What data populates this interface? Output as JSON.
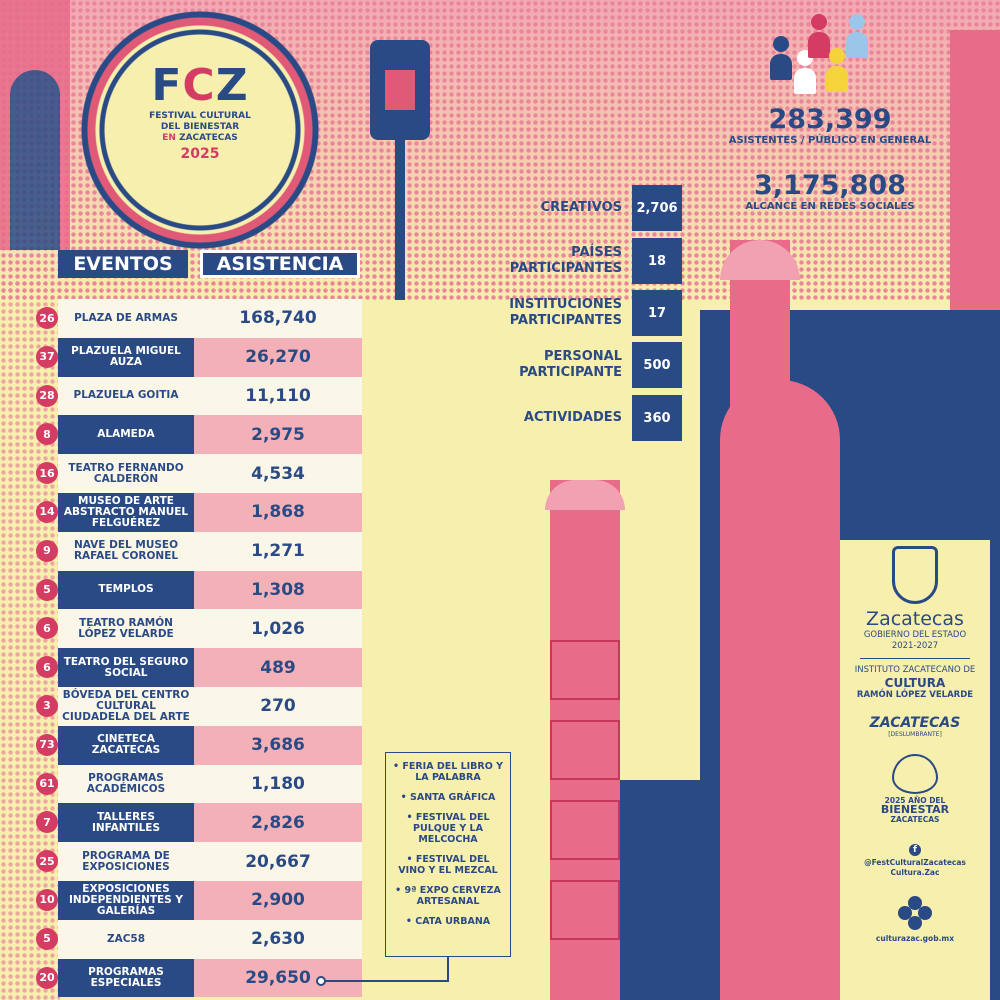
{
  "logo": {
    "acronym_left": "F",
    "acronym_mid": "C",
    "acronym_right": "Z",
    "line1": "FESTIVAL CULTURAL",
    "line2": "DEL BIENESTAR",
    "line3_en": "EN",
    "line3_place": "ZACATECAS",
    "year": "2025"
  },
  "table": {
    "header_events": "EVENTOS",
    "header_attendance": "ASISTENCIA",
    "rows": [
      {
        "count": "26",
        "event": "PLAZA DE ARMAS",
        "attendance": "168,740"
      },
      {
        "count": "37",
        "event": "PLAZUELA MIGUEL AUZA",
        "attendance": "26,270"
      },
      {
        "count": "28",
        "event": "PLAZUELA GOITIA",
        "attendance": "11,110"
      },
      {
        "count": "8",
        "event": "ALAMEDA",
        "attendance": "2,975"
      },
      {
        "count": "16",
        "event": "TEATRO FERNANDO CALDERÓN",
        "attendance": "4,534"
      },
      {
        "count": "14",
        "event": "MUSEO DE ARTE ABSTRACTO MANUEL FELGUÉREZ",
        "attendance": "1,868"
      },
      {
        "count": "9",
        "event": "NAVE DEL MUSEO RAFAEL CORONEL",
        "attendance": "1,271"
      },
      {
        "count": "5",
        "event": "TEMPLOS",
        "attendance": "1,308"
      },
      {
        "count": "6",
        "event": "TEATRO RAMÓN LÓPEZ VELARDE",
        "attendance": "1,026"
      },
      {
        "count": "6",
        "event": "TEATRO DEL SEGURO SOCIAL",
        "attendance": "489"
      },
      {
        "count": "3",
        "event": "BÓVEDA DEL CENTRO CULTURAL CIUDADELA DEL ARTE",
        "attendance": "270"
      },
      {
        "count": "73",
        "event": "CINETECA ZACATECAS",
        "attendance": "3,686"
      },
      {
        "count": "61",
        "event": "PROGRAMAS ACADÉMICOS",
        "attendance": "1,180"
      },
      {
        "count": "7",
        "event": "TALLERES INFANTILES",
        "attendance": "2,826"
      },
      {
        "count": "25",
        "event": "PROGRAMA DE EXPOSICIONES",
        "attendance": "20,667"
      },
      {
        "count": "10",
        "event": "EXPOSICIONES INDEPENDIENTES Y GALERÍAS",
        "attendance": "2,900"
      },
      {
        "count": "5",
        "event": "ZAC58",
        "attendance": "2,630"
      },
      {
        "count": "20",
        "event": "PROGRAMAS ESPECIALES",
        "attendance": "29,650"
      }
    ]
  },
  "stats": {
    "creativos_label": "CREATIVOS",
    "creativos_value": "2,706",
    "paises_label": "PAÍSES PARTICIPANTES",
    "paises_value": "18",
    "instituciones_label": "INSTITUCIONES PARTICIPANTES",
    "instituciones_value": "17",
    "personal_label": "PERSONAL PARTICIPANTE",
    "personal_value": "500",
    "actividades_label": "ACTIVIDADES",
    "actividades_value": "360"
  },
  "big_stats": {
    "asistentes_value": "283,399",
    "asistentes_label": "ASISTENTES / PÚBLICO EN GENERAL",
    "alcance_value": "3,175,808",
    "alcance_label": "ALCANCE EN REDES SOCIALES"
  },
  "special_programs": [
    "• FERIA DEL LIBRO Y LA PALABRA",
    "• SANTA GRÁFICA",
    "• FESTIVAL DEL PULQUE Y LA MELCOCHA",
    "• FESTIVAL DEL VINO Y EL MEZCAL",
    "• 9ª EXPO CERVEZA ARTESANAL",
    "• CATA URBANA"
  ],
  "branding": {
    "state_name": "Zacatecas",
    "gov_line": "GOBIERNO DEL ESTADO",
    "period": "2021-2027",
    "institute_line1": "INSTITUTO ZACATECANO DE",
    "institute_line2": "CULTURA",
    "institute_line3": "RAMÓN LÓPEZ VELARDE",
    "tourism_logo": "ZACATECAS",
    "tourism_sub": "[DESLUMBRANTE]",
    "year_line1": "2025 AÑO DEL",
    "year_line2": "BIENESTAR",
    "year_line3": "ZACATECAS",
    "social_handle": "@FestCulturalZacatecas",
    "social_handle2": "Cultura.Zac",
    "website": "culturazac.gob.mx"
  },
  "colors": {
    "navy": "#2a4a86",
    "pink": "#d43c63",
    "light_pink": "#f3b1b7",
    "cream": "#f7efae"
  }
}
